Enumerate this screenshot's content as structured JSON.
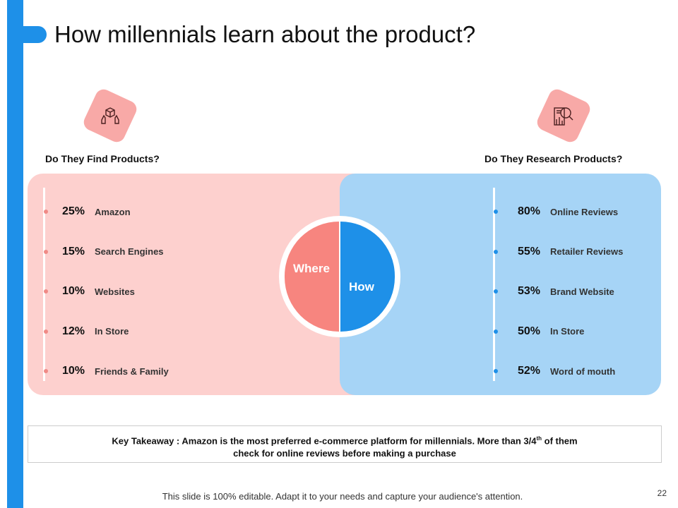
{
  "title": "How millennials learn about the product?",
  "left": {
    "heading": "Do They Find Products?",
    "icon": "hands-holding-box-icon",
    "items": [
      {
        "pct": "25%",
        "label": "Amazon"
      },
      {
        "pct": "15%",
        "label": "Search Engines"
      },
      {
        "pct": "10%",
        "label": "Websites"
      },
      {
        "pct": "12%",
        "label": "In Store"
      },
      {
        "pct": "10%",
        "label": "Friends & Family"
      }
    ]
  },
  "right": {
    "heading": "Do They Research Products?",
    "icon": "magnifier-chart-icon",
    "items": [
      {
        "pct": "80%",
        "label": "Online Reviews"
      },
      {
        "pct": "55%",
        "label": "Retailer Reviews"
      },
      {
        "pct": "53%",
        "label": "Brand Website"
      },
      {
        "pct": "50%",
        "label": "In Store"
      },
      {
        "pct": "52%",
        "label": "Word of mouth"
      }
    ]
  },
  "circle": {
    "left": "Where",
    "right": "How"
  },
  "takeaway": {
    "line1_a": "Key Takeaway : Amazon is the most preferred e-commerce platform for millennials. More than 3/4",
    "sup": "th",
    "line1_b": " of them",
    "line2": "check for online reviews before making a purchase"
  },
  "footer": "This slide is 100% editable. Adapt it to your needs and capture your audience's attention.",
  "page_number": "22",
  "colors": {
    "accent": "#1e90e8",
    "pink": "#fdd0ce",
    "coral": "#f7857f",
    "light_blue": "#a6d4f6"
  }
}
